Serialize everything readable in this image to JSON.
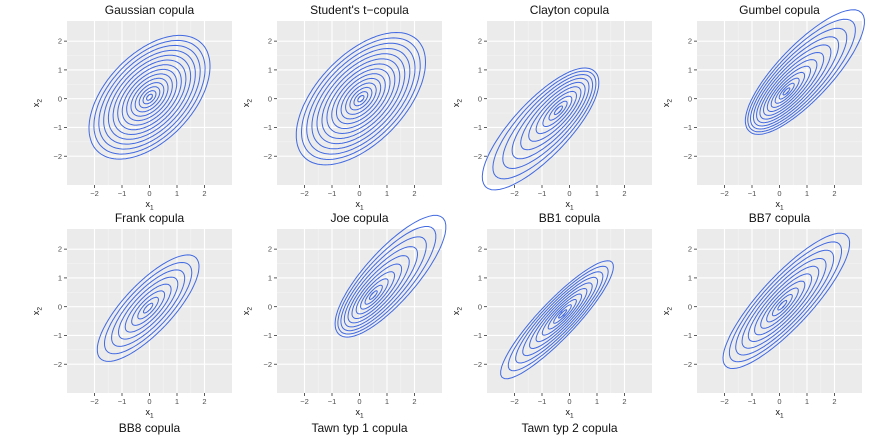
{
  "figure": {
    "panel_bg": "#ebebeb",
    "grid_major": "#ffffff",
    "grid_minor": "#f4f4f4",
    "line_color": "#4169e1"
  },
  "chart_data": [
    {
      "type": "contour",
      "title": "Gaussian copula",
      "xlabel": "x1",
      "ylabel": "x2",
      "xlim": [
        -3,
        3
      ],
      "ylim": [
        -3,
        2.7
      ],
      "x_ticks": [
        -2,
        -1,
        0,
        1,
        2
      ],
      "y_ticks": [
        -2,
        -1,
        0,
        1,
        2
      ],
      "shape": {
        "rho": 0.5,
        "skew": 0,
        "contours": 14,
        "outer_radius": 2.5,
        "x_range": [
          -2.2,
          2.2
        ],
        "y_range": [
          -2.1,
          2.2
        ]
      }
    },
    {
      "type": "contour",
      "title": "Student's t−copula",
      "xlabel": "x1",
      "ylabel": "x2",
      "xlim": [
        -3,
        3
      ],
      "ylim": [
        -3,
        2.7
      ],
      "x_ticks": [
        -2,
        -1,
        0,
        1,
        2
      ],
      "y_ticks": [
        -2,
        -1,
        0,
        1,
        2
      ],
      "shape": {
        "rho": 0.55,
        "skew": 0,
        "contours": 14,
        "outer_radius": 2.6,
        "x_range": [
          -2.3,
          2.4
        ],
        "y_range": [
          -2.3,
          2.3
        ]
      }
    },
    {
      "type": "contour",
      "title": "Clayton copula",
      "xlabel": "x1",
      "ylabel": "x2",
      "xlim": [
        -3,
        3
      ],
      "ylim": [
        -3,
        2.7
      ],
      "x_ticks": [
        -2,
        -1,
        0,
        1,
        2
      ],
      "y_ticks": [
        -2,
        -1,
        0,
        1,
        2
      ],
      "shape": {
        "rho": 0.8,
        "skew": -1,
        "contours": 10,
        "outer_radius": 2.6,
        "x_range": [
          -2.5,
          1.7
        ],
        "y_range": [
          -2.5,
          1.7
        ]
      }
    },
    {
      "type": "contour",
      "title": "Gumbel copula",
      "xlabel": "x1",
      "ylabel": "x2",
      "xlim": [
        -3,
        3
      ],
      "ylim": [
        -3,
        2.7
      ],
      "x_ticks": [
        -2,
        -1,
        0,
        1,
        2
      ],
      "y_ticks": [
        -2,
        -1,
        0,
        1,
        2
      ],
      "shape": {
        "rho": 0.82,
        "skew": 1,
        "contours": 12,
        "outer_radius": 2.6,
        "x_range": [
          -1.9,
          2.4
        ],
        "y_range": [
          -1.9,
          2.4
        ]
      }
    },
    {
      "type": "contour",
      "title": "Frank copula",
      "xlabel": "x1",
      "ylabel": "x2",
      "xlim": [
        -3,
        3
      ],
      "ylim": [
        -3,
        2.7
      ],
      "x_ticks": [
        -2,
        -1,
        0,
        1,
        2
      ],
      "y_ticks": [
        -2,
        -1,
        0,
        1,
        2
      ],
      "shape": {
        "rho": 0.78,
        "skew": 0,
        "contours": 8,
        "outer_radius": 2.5,
        "x_range": [
          -1.9,
          1.8
        ],
        "y_range": [
          -1.9,
          1.8
        ]
      }
    },
    {
      "type": "contour",
      "title": "Joe copula",
      "xlabel": "x1",
      "ylabel": "x2",
      "xlim": [
        -3,
        3
      ],
      "ylim": [
        -3,
        2.7
      ],
      "x_ticks": [
        -2,
        -1,
        0,
        1,
        2
      ],
      "y_ticks": [
        -2,
        -1,
        0,
        1,
        2
      ],
      "shape": {
        "rho": 0.82,
        "skew": 1,
        "contours": 10,
        "outer_radius": 2.6,
        "x_range": [
          -1.5,
          2.5
        ],
        "y_range": [
          -1.7,
          2.5
        ]
      }
    },
    {
      "type": "contour",
      "title": "BB1 copula",
      "xlabel": "x1",
      "ylabel": "x2",
      "xlim": [
        -3,
        3
      ],
      "ylim": [
        -3,
        2.7
      ],
      "x_ticks": [
        -2,
        -1,
        0,
        1,
        2
      ],
      "y_ticks": [
        -2,
        -1,
        0,
        1,
        2
      ],
      "shape": {
        "rho": 0.9,
        "skew": -0.3,
        "contours": 10,
        "outer_radius": 2.6,
        "x_range": [
          -2.3,
          1.8
        ],
        "y_range": [
          -2.3,
          1.8
        ]
      }
    },
    {
      "type": "contour",
      "title": "BB7 copula",
      "xlabel": "x1",
      "ylabel": "x2",
      "xlim": [
        -3,
        3
      ],
      "ylim": [
        -3,
        2.7
      ],
      "x_ticks": [
        -2,
        -1,
        0,
        1,
        2
      ],
      "y_ticks": [
        -2,
        -1,
        0,
        1,
        2
      ],
      "shape": {
        "rho": 0.85,
        "skew": 0.2,
        "contours": 10,
        "outer_radius": 2.6,
        "x_range": [
          -2.2,
          2.4
        ],
        "y_range": [
          -2.3,
          2.4
        ]
      }
    }
  ],
  "bottom_titles": [
    "BB8 copula",
    "Tawn typ 1 copula",
    "Tawn typ 2 copula"
  ]
}
